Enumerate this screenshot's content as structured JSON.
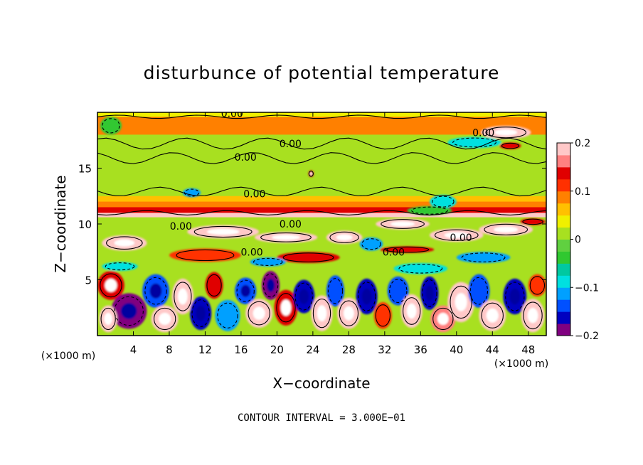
{
  "chart_data": {
    "type": "heatmap",
    "title": "disturbunce of potential temperature",
    "xlabel": "X−coordinate",
    "ylabel": "Z−coordinate",
    "x_unit": "(×1000 m)",
    "z_unit": "(×1000 m)",
    "xlim": [
      0,
      50
    ],
    "ylim": [
      0,
      20
    ],
    "x_ticks": [
      4,
      8,
      12,
      16,
      20,
      24,
      28,
      32,
      36,
      40,
      44,
      48
    ],
    "y_ticks": [
      5,
      10,
      15
    ],
    "colorbar": {
      "range": [
        -0.2,
        0.2
      ],
      "tick_values": [
        0.2,
        0.1,
        0,
        -0.1,
        -0.2
      ],
      "tick_labels": [
        "0.2",
        "0.1",
        "0",
        "−0.1",
        "−0.2"
      ],
      "colors": [
        "#800080",
        "#0000c0",
        "#0050ff",
        "#00a0ff",
        "#00e0e0",
        "#00c8a0",
        "#30c830",
        "#60d040",
        "#a8e020",
        "#f0f000",
        "#ffc000",
        "#ff8000",
        "#ff3000",
        "#e00000",
        "#ff8080",
        "#ffc8c8"
      ]
    },
    "contour_interval_text": "CONTOUR INTERVAL = 3.000E−01",
    "contour_labels": [
      {
        "text": "0.00",
        "x": 15.0,
        "z": 19.9
      },
      {
        "text": "0.00",
        "x": 21.5,
        "z": 17.2
      },
      {
        "text": "0.00",
        "x": 16.5,
        "z": 16.0
      },
      {
        "text": "0.00",
        "x": 17.5,
        "z": 12.7
      },
      {
        "text": "0.00",
        "x": 43.0,
        "z": 18.2
      },
      {
        "text": "0.00",
        "x": 21.5,
        "z": 10.0
      },
      {
        "text": "0.00",
        "x": 9.3,
        "z": 9.8
      },
      {
        "text": "0.00",
        "x": 40.5,
        "z": 8.8
      },
      {
        "text": "0.00",
        "x": 17.2,
        "z": 7.5
      },
      {
        "text": "0.00",
        "x": 33.0,
        "z": 7.5
      }
    ],
    "bands": [
      {
        "z0": 19.6,
        "z1": 20.0,
        "value": 0.04
      },
      {
        "z0": 18.0,
        "z1": 19.6,
        "value": 0.09
      },
      {
        "z0": 14.0,
        "z1": 18.0,
        "value": 0.0
      },
      {
        "z0": 12.5,
        "z1": 14.0,
        "value": 0.01
      },
      {
        "z0": 12.0,
        "z1": 12.5,
        "value": 0.06
      },
      {
        "z0": 11.5,
        "z1": 12.0,
        "value": 0.09
      },
      {
        "z0": 11.0,
        "z1": 11.5,
        "value": 0.14
      },
      {
        "z0": 10.6,
        "z1": 11.0,
        "value": 0.2
      },
      {
        "z0": 8.0,
        "z1": 10.6,
        "value": 0.0
      },
      {
        "z0": 6.0,
        "z1": 8.0,
        "value": 0.0
      },
      {
        "z0": 0.0,
        "z1": 6.0,
        "value": 0.0
      }
    ],
    "blobs": [
      {
        "x": 45.5,
        "z": 18.2,
        "rx": 2.8,
        "rz": 0.6,
        "value": 0.2
      },
      {
        "x": 42.0,
        "z": 17.3,
        "rx": 3.0,
        "rz": 0.5,
        "value": -0.1
      },
      {
        "x": 46.0,
        "z": 17.0,
        "rx": 1.2,
        "rz": 0.3,
        "value": 0.13
      },
      {
        "x": 1.5,
        "z": 18.8,
        "rx": 1.2,
        "rz": 0.8,
        "value": -0.05
      },
      {
        "x": 23.8,
        "z": 14.5,
        "rx": 0.3,
        "rz": 0.3,
        "value": 0.15
      },
      {
        "x": 10.5,
        "z": 12.8,
        "rx": 1.0,
        "rz": 0.4,
        "value": -0.12
      },
      {
        "x": 38.5,
        "z": 12.0,
        "rx": 1.5,
        "rz": 0.6,
        "value": -0.1
      },
      {
        "x": 37.0,
        "z": 11.2,
        "rx": 2.5,
        "rz": 0.4,
        "value": -0.04
      },
      {
        "x": 34.0,
        "z": 10.0,
        "rx": 3.0,
        "rz": 0.5,
        "value": 0.2
      },
      {
        "x": 14.0,
        "z": 9.3,
        "rx": 4.0,
        "rz": 0.6,
        "value": 0.2
      },
      {
        "x": 21.0,
        "z": 8.8,
        "rx": 3.5,
        "rz": 0.5,
        "value": 0.18
      },
      {
        "x": 3.0,
        "z": 8.3,
        "rx": 2.5,
        "rz": 0.7,
        "value": 0.2
      },
      {
        "x": 27.5,
        "z": 8.8,
        "rx": 2.0,
        "rz": 0.6,
        "value": 0.2
      },
      {
        "x": 30.5,
        "z": 8.2,
        "rx": 1.3,
        "rz": 0.6,
        "value": -0.12
      },
      {
        "x": 40.0,
        "z": 9.0,
        "rx": 3.0,
        "rz": 0.6,
        "value": 0.2
      },
      {
        "x": 45.5,
        "z": 9.5,
        "rx": 3.0,
        "rz": 0.6,
        "value": 0.19
      },
      {
        "x": 48.5,
        "z": 10.2,
        "rx": 1.4,
        "rz": 0.3,
        "value": 0.13
      },
      {
        "x": 34.5,
        "z": 7.7,
        "rx": 3.0,
        "rz": 0.3,
        "value": 0.14
      },
      {
        "x": 12.0,
        "z": 7.2,
        "rx": 4.0,
        "rz": 0.6,
        "value": 0.12
      },
      {
        "x": 23.5,
        "z": 7.0,
        "rx": 3.5,
        "rz": 0.5,
        "value": 0.13
      },
      {
        "x": 43.0,
        "z": 7.0,
        "rx": 3.0,
        "rz": 0.5,
        "value": -0.12
      },
      {
        "x": 36.0,
        "z": 6.0,
        "rx": 3.0,
        "rz": 0.5,
        "value": -0.09
      },
      {
        "x": 2.5,
        "z": 6.2,
        "rx": 2.0,
        "rz": 0.4,
        "value": -0.1
      },
      {
        "x": 19.0,
        "z": 6.6,
        "rx": 2.0,
        "rz": 0.4,
        "value": -0.11
      },
      {
        "x": 1.5,
        "z": 4.5,
        "rx": 1.5,
        "rz": 1.3,
        "value": 0.15
      },
      {
        "x": 3.5,
        "z": 2.2,
        "rx": 2.0,
        "rz": 1.6,
        "value": -0.18
      },
      {
        "x": 1.2,
        "z": 1.5,
        "rx": 1.0,
        "rz": 1.2,
        "value": 0.2
      },
      {
        "x": 6.5,
        "z": 4.0,
        "rx": 1.5,
        "rz": 1.5,
        "value": -0.15
      },
      {
        "x": 7.5,
        "z": 1.5,
        "rx": 1.5,
        "rz": 1.2,
        "value": 0.18
      },
      {
        "x": 9.5,
        "z": 3.5,
        "rx": 1.2,
        "rz": 1.6,
        "value": 0.2
      },
      {
        "x": 11.5,
        "z": 2.0,
        "rx": 1.2,
        "rz": 1.5,
        "value": -0.17
      },
      {
        "x": 13.0,
        "z": 4.5,
        "rx": 1.0,
        "rz": 1.2,
        "value": 0.13
      },
      {
        "x": 14.5,
        "z": 1.8,
        "rx": 1.4,
        "rz": 1.4,
        "value": -0.12
      },
      {
        "x": 16.5,
        "z": 4.0,
        "rx": 1.2,
        "rz": 1.2,
        "value": -0.15
      },
      {
        "x": 18.0,
        "z": 2.0,
        "rx": 1.5,
        "rz": 1.3,
        "value": 0.2
      },
      {
        "x": 19.3,
        "z": 4.5,
        "rx": 1.0,
        "rz": 1.3,
        "value": -0.2
      },
      {
        "x": 21.0,
        "z": 2.5,
        "rx": 1.3,
        "rz": 1.6,
        "value": 0.15
      },
      {
        "x": 23.0,
        "z": 3.5,
        "rx": 1.2,
        "rz": 1.5,
        "value": -0.16
      },
      {
        "x": 25.0,
        "z": 2.0,
        "rx": 1.2,
        "rz": 1.6,
        "value": 0.2
      },
      {
        "x": 26.5,
        "z": 4.0,
        "rx": 1.0,
        "rz": 1.4,
        "value": -0.13
      },
      {
        "x": 28.0,
        "z": 2.0,
        "rx": 1.3,
        "rz": 1.4,
        "value": 0.2
      },
      {
        "x": 30.0,
        "z": 3.5,
        "rx": 1.2,
        "rz": 1.6,
        "value": -0.17
      },
      {
        "x": 31.8,
        "z": 1.8,
        "rx": 1.0,
        "rz": 1.2,
        "value": 0.12
      },
      {
        "x": 33.5,
        "z": 4.0,
        "rx": 1.2,
        "rz": 1.3,
        "value": -0.14
      },
      {
        "x": 35.0,
        "z": 2.2,
        "rx": 1.2,
        "rz": 1.5,
        "value": 0.2
      },
      {
        "x": 37.0,
        "z": 3.8,
        "rx": 1.0,
        "rz": 1.5,
        "value": -0.16
      },
      {
        "x": 38.5,
        "z": 1.5,
        "rx": 1.4,
        "rz": 1.2,
        "value": 0.16
      },
      {
        "x": 40.5,
        "z": 3.0,
        "rx": 1.5,
        "rz": 1.8,
        "value": 0.2
      },
      {
        "x": 42.5,
        "z": 4.0,
        "rx": 1.2,
        "rz": 1.5,
        "value": -0.13
      },
      {
        "x": 44.0,
        "z": 1.8,
        "rx": 1.5,
        "rz": 1.4,
        "value": 0.18
      },
      {
        "x": 46.5,
        "z": 3.5,
        "rx": 1.3,
        "rz": 1.6,
        "value": -0.16
      },
      {
        "x": 48.5,
        "z": 1.8,
        "rx": 1.3,
        "rz": 1.5,
        "value": 0.2
      },
      {
        "x": 49.0,
        "z": 4.5,
        "rx": 1.0,
        "rz": 1.0,
        "value": 0.12
      }
    ]
  }
}
